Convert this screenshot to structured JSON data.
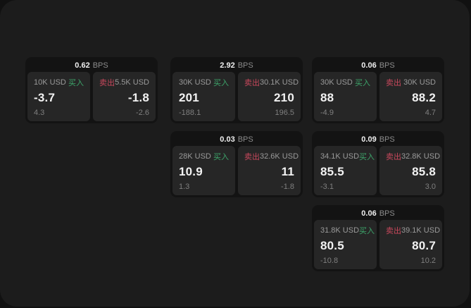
{
  "colors": {
    "buy_green": "#3da56b",
    "sell_red": "#c8485c",
    "panel_bg": "#262626",
    "card_bg": "#131313",
    "page_bg": "#1c1c1c"
  },
  "cards": [
    {
      "bps_value": "0.62",
      "bps_unit": "BPS",
      "buy": {
        "label": "买入",
        "amount": "10K USD",
        "price": "-3.7",
        "delta": "4.3"
      },
      "sell": {
        "label": "卖出",
        "amount": "5.5K USD",
        "price": "-1.8",
        "delta": "-2.6"
      }
    },
    {
      "bps_value": "2.92",
      "bps_unit": "BPS",
      "buy": {
        "label": "买入",
        "amount": "30K USD",
        "price": "201",
        "delta": "-188.1"
      },
      "sell": {
        "label": "卖出",
        "amount": "30.1K USD",
        "price": "210",
        "delta": "196.5"
      }
    },
    {
      "bps_value": "0.06",
      "bps_unit": "BPS",
      "buy": {
        "label": "买入",
        "amount": "30K USD",
        "price": "88",
        "delta": "-4.9"
      },
      "sell": {
        "label": "卖出",
        "amount": "30K USD",
        "price": "88.2",
        "delta": "4.7"
      }
    },
    {
      "bps_value": "0.03",
      "bps_unit": "BPS",
      "buy": {
        "label": "买入",
        "amount": "28K USD",
        "price": "10.9",
        "delta": "1.3"
      },
      "sell": {
        "label": "卖出",
        "amount": "32.6K USD",
        "price": "11",
        "delta": "-1.8"
      }
    },
    {
      "bps_value": "0.09",
      "bps_unit": "BPS",
      "buy": {
        "label": "买入",
        "amount": "34.1K USD",
        "price": "85.5",
        "delta": "-3.1"
      },
      "sell": {
        "label": "卖出",
        "amount": "32.8K USD",
        "price": "85.8",
        "delta": "3.0"
      }
    },
    {
      "bps_value": "0.06",
      "bps_unit": "BPS",
      "buy": {
        "label": "买入",
        "amount": "31.8K USD",
        "price": "80.5",
        "delta": "-10.8"
      },
      "sell": {
        "label": "卖出",
        "amount": "39.1K USD",
        "price": "80.7",
        "delta": "10.2"
      }
    }
  ]
}
